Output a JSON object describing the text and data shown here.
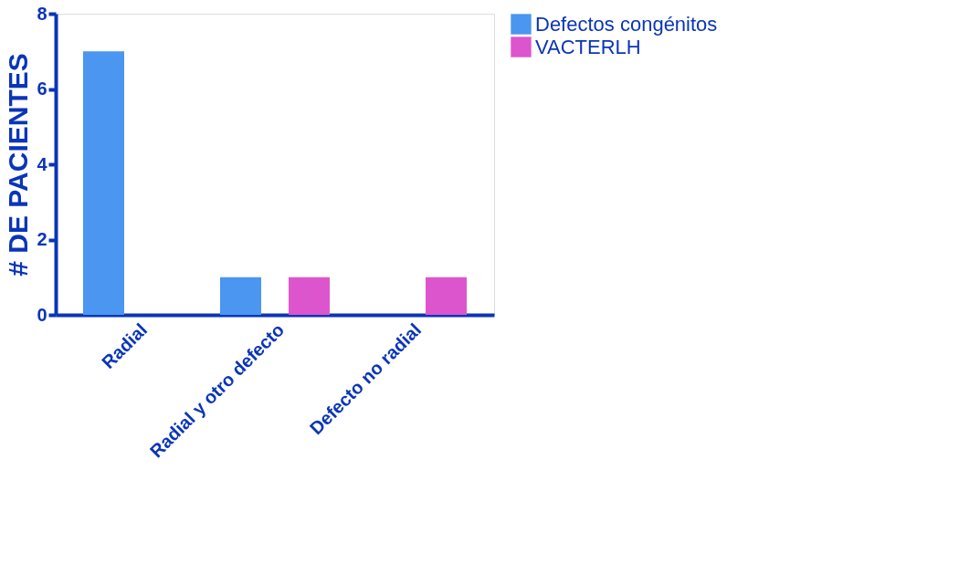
{
  "chart_data": {
    "type": "bar",
    "ylabel": "# DE PACIENTES",
    "categories": [
      "Radial",
      "Radial y otro defecto",
      "Defecto no radial"
    ],
    "series": [
      {
        "name": "Defectos congénitos",
        "color": "#4a96f0",
        "values": [
          7,
          1,
          0
        ]
      },
      {
        "name": "VACTERLH",
        "color": "#dd55cc",
        "values": [
          0,
          1,
          1
        ]
      }
    ],
    "ylim": [
      0,
      8
    ],
    "yticks": [
      0,
      2,
      4,
      6,
      8
    ],
    "grid": false,
    "legend": "top right"
  }
}
